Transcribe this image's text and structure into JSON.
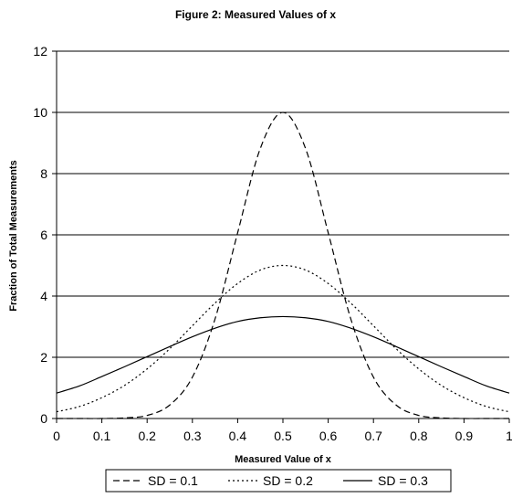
{
  "chart_data": {
    "type": "line",
    "title": "Figure 2:  Measured Values of x",
    "xlabel": "Measured Value of x",
    "ylabel": "Fraction of Total Measurements",
    "xlim": [
      0,
      1
    ],
    "ylim": [
      0,
      12
    ],
    "x_ticks": [
      "0",
      "0.1",
      "0.2",
      "0.3",
      "0.4",
      "0.5",
      "0.6",
      "0.7",
      "0.8",
      "0.9",
      "1"
    ],
    "y_ticks": [
      "0",
      "2",
      "4",
      "6",
      "8",
      "10",
      "12"
    ],
    "grid": "horizontal",
    "legend_position": "bottom",
    "series": [
      {
        "name": "SD = 0.1",
        "style": "dashed",
        "color": "#000000",
        "x": [
          0,
          0.05,
          0.1,
          0.15,
          0.2,
          0.25,
          0.3,
          0.35,
          0.4,
          0.45,
          0.5,
          0.55,
          0.6,
          0.65,
          0.7,
          0.75,
          0.8,
          0.85,
          0.9,
          0.95,
          1
        ],
        "values": [
          0.0,
          0.0,
          0.0,
          0.02,
          0.1,
          0.44,
          1.35,
          3.25,
          6.07,
          8.82,
          10.0,
          8.82,
          6.07,
          3.25,
          1.35,
          0.44,
          0.1,
          0.02,
          0.0,
          0.0,
          0.0
        ]
      },
      {
        "name": "SD = 0.2",
        "style": "dotted",
        "color": "#000000",
        "x": [
          0,
          0.05,
          0.1,
          0.15,
          0.2,
          0.25,
          0.3,
          0.35,
          0.4,
          0.45,
          0.5,
          0.55,
          0.6,
          0.65,
          0.7,
          0.75,
          0.8,
          0.85,
          0.9,
          0.95,
          1
        ],
        "values": [
          0.22,
          0.39,
          0.68,
          1.08,
          1.62,
          2.28,
          3.03,
          3.77,
          4.41,
          4.85,
          5.0,
          4.85,
          4.41,
          3.77,
          3.03,
          2.28,
          1.62,
          1.08,
          0.68,
          0.39,
          0.22
        ]
      },
      {
        "name": "SD = 0.3",
        "style": "solid",
        "color": "#000000",
        "x": [
          0,
          0.05,
          0.1,
          0.15,
          0.2,
          0.25,
          0.3,
          0.35,
          0.4,
          0.45,
          0.5,
          0.55,
          0.6,
          0.65,
          0.7,
          0.75,
          0.8,
          0.85,
          0.9,
          0.95,
          1
        ],
        "values": [
          0.83,
          1.06,
          1.37,
          1.69,
          2.02,
          2.35,
          2.67,
          2.95,
          3.17,
          3.29,
          3.33,
          3.29,
          3.17,
          2.95,
          2.67,
          2.35,
          2.02,
          1.69,
          1.37,
          1.06,
          0.83
        ]
      }
    ]
  }
}
